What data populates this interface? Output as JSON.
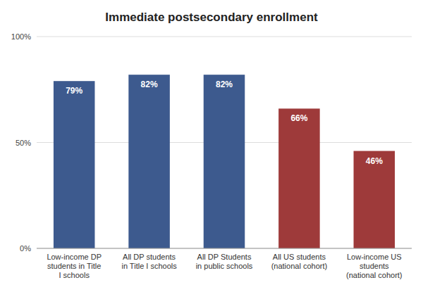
{
  "chart_data": {
    "type": "bar",
    "title": "Immediate postsecondary enrollment",
    "categories": [
      "Low-income DP\nstudents in Title\nI schools",
      "All DP students\nin Title I schools",
      "All DP Students\nin public schools",
      "All US students\n(national cohort)",
      "Low-income US\nstudents\n(national cohort)"
    ],
    "values": [
      79,
      82,
      82,
      66,
      46
    ],
    "value_labels": [
      "79%",
      "82%",
      "82%",
      "66%",
      "46%"
    ],
    "data_labels": true,
    "colors": [
      "#3D5A8E",
      "#3D5A8E",
      "#3D5A8E",
      "#9E3A3A",
      "#9E3A3A"
    ],
    "ylim": [
      0,
      100
    ],
    "yticks": [
      {
        "value": 0,
        "label": "0%"
      },
      {
        "value": 50,
        "label": "50%"
      },
      {
        "value": 100,
        "label": "100%"
      }
    ],
    "grid": true
  }
}
